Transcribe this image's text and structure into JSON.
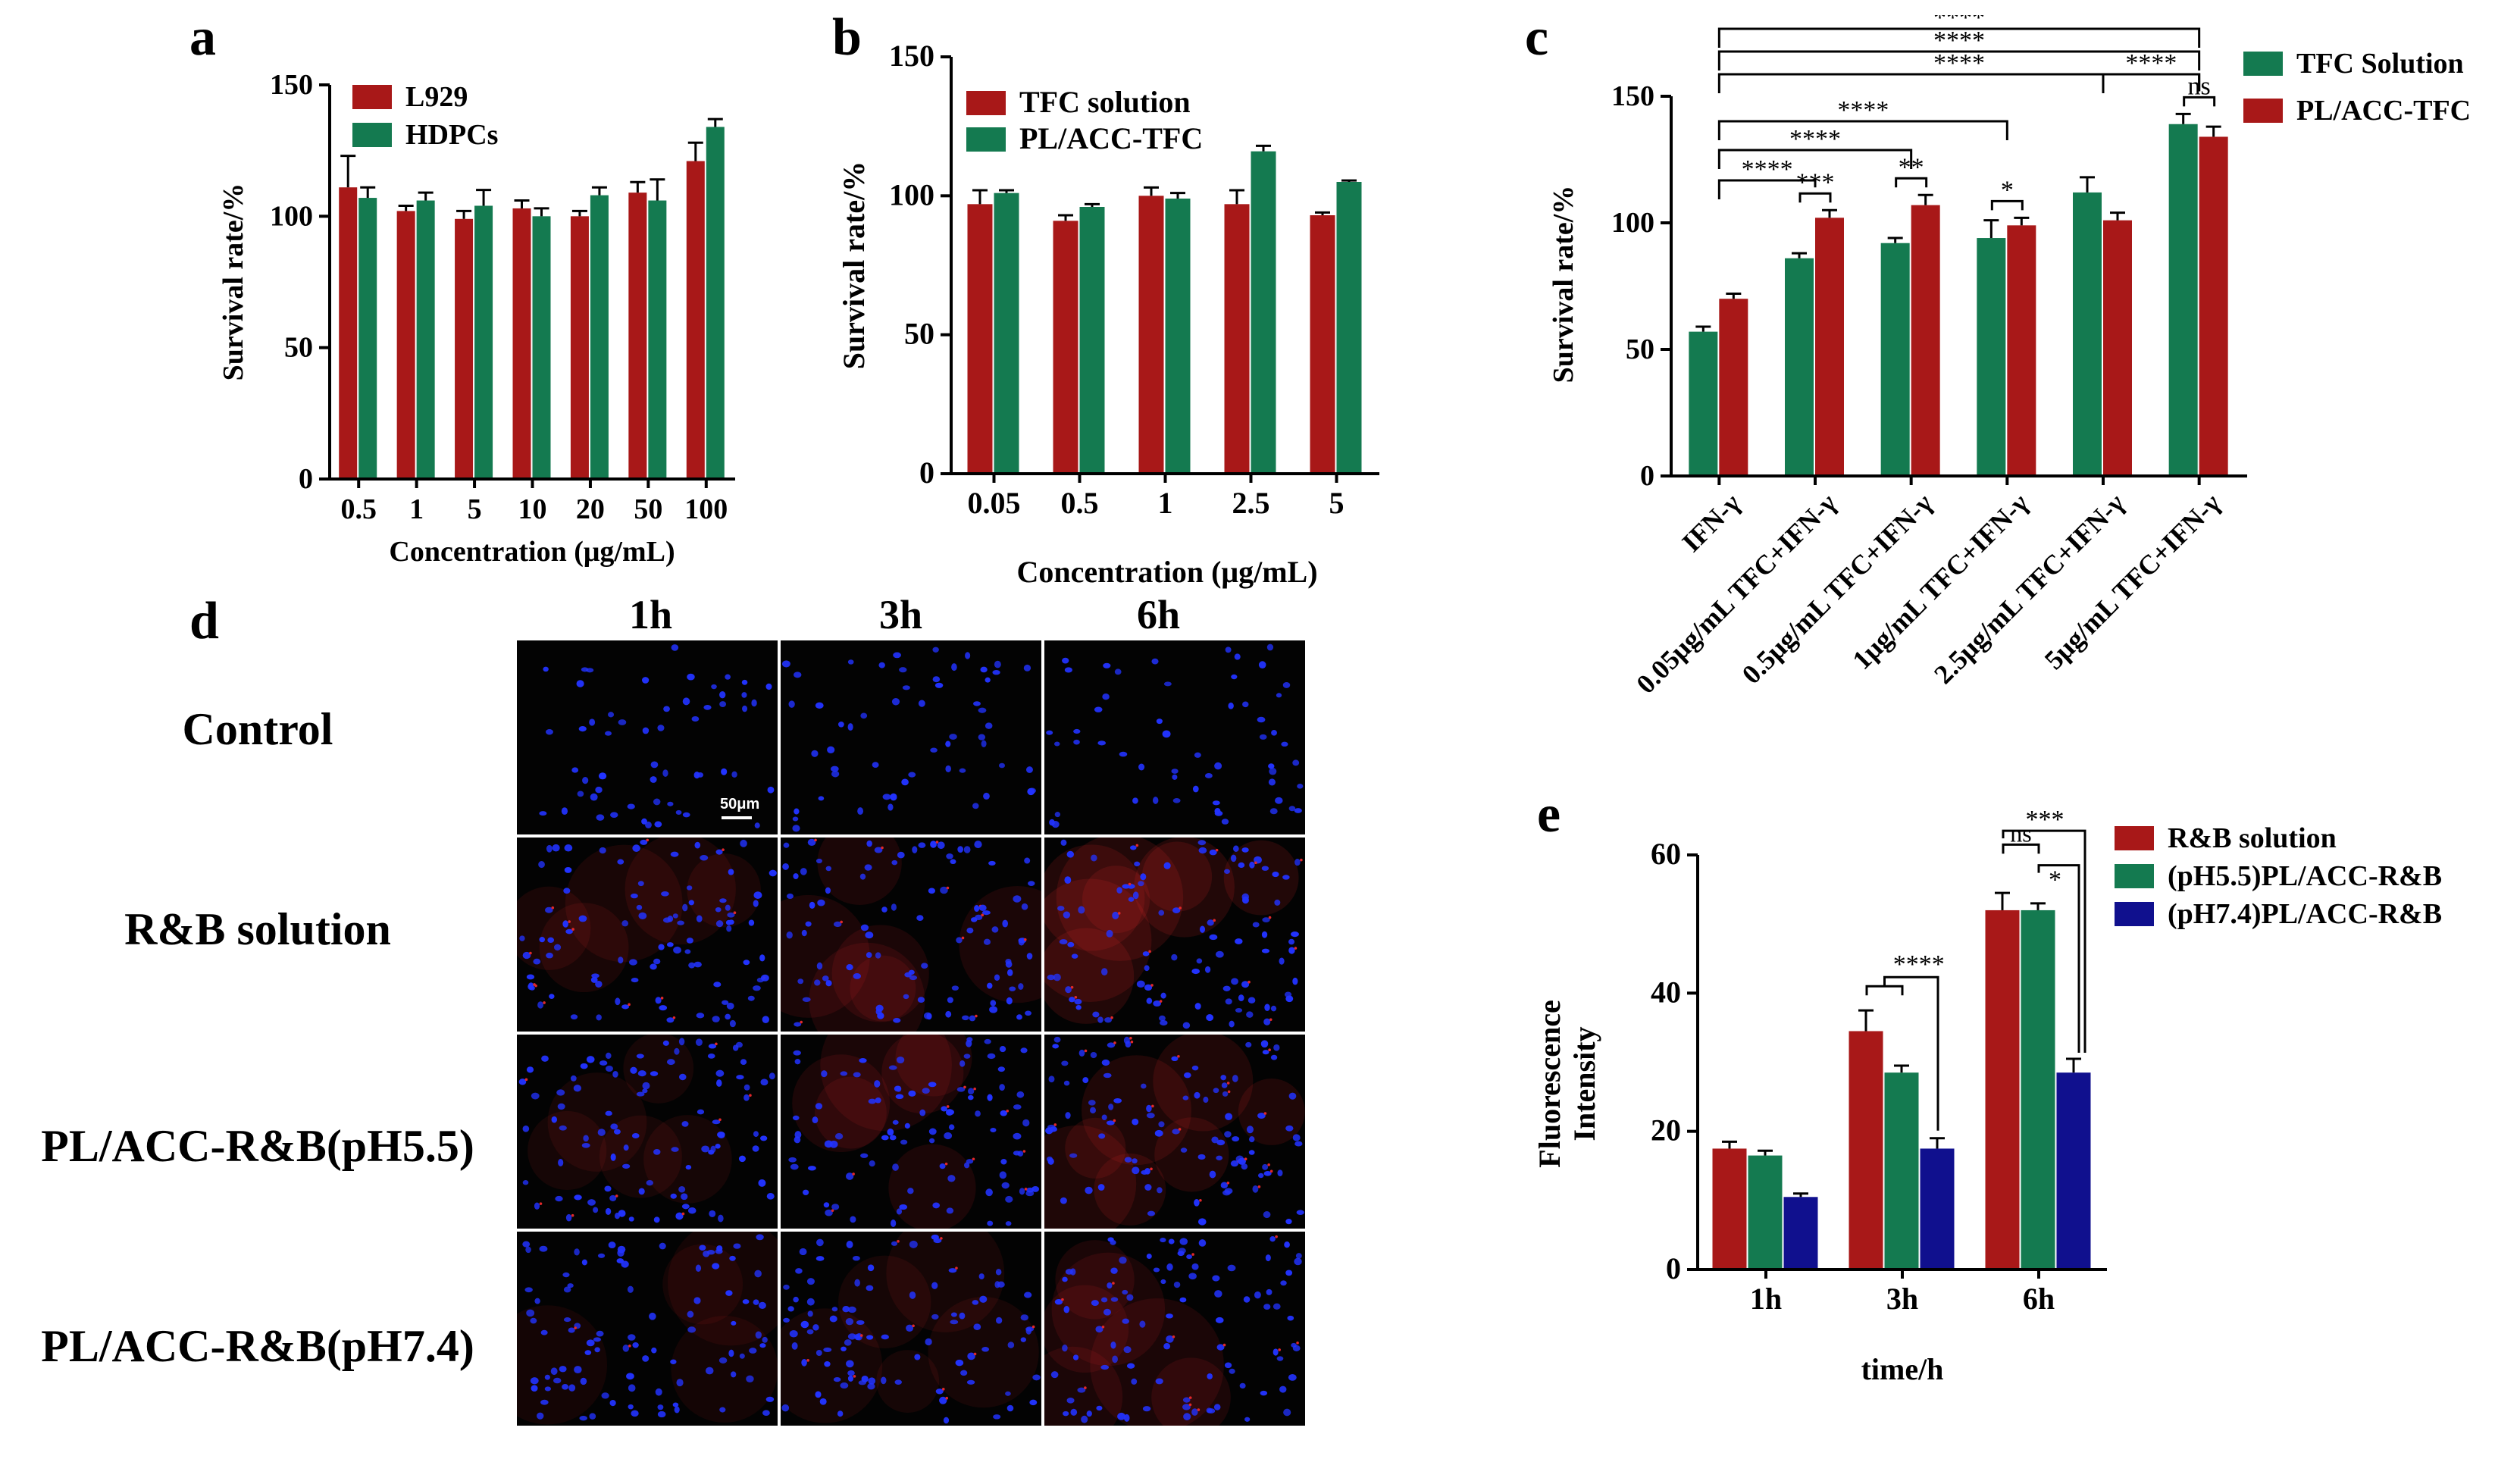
{
  "colors": {
    "red": "#A81818",
    "green": "#147A50",
    "blue": "#10108E",
    "micro_background": "#030303",
    "nucleus": "#2233FF",
    "dye": "#E0282A"
  },
  "panels": {
    "a": {
      "letter": "a"
    },
    "b": {
      "letter": "b"
    },
    "c": {
      "letter": "c"
    },
    "d": {
      "letter": "d"
    },
    "e": {
      "letter": "e"
    }
  },
  "chart_data": [
    {
      "id": "a",
      "type": "bar",
      "title": "",
      "xlabel": "Concentration (μg/mL)",
      "ylabel": "Survival rate/%",
      "ylim": [
        0,
        150
      ],
      "yticks": [
        0,
        50,
        100,
        150
      ],
      "categories": [
        "0.5",
        "1",
        "5",
        "10",
        "20",
        "50",
        "100"
      ],
      "series": [
        {
          "name": "L929",
          "color": "#A81818",
          "values": [
            111,
            102,
            99,
            103,
            100,
            109,
            121
          ],
          "errors": [
            12,
            2,
            3,
            3,
            2,
            4,
            7
          ]
        },
        {
          "name": "HDPCs",
          "color": "#147A50",
          "values": [
            107,
            106,
            104,
            100,
            108,
            106,
            134
          ],
          "errors": [
            4,
            3,
            6,
            3,
            3,
            8,
            3
          ]
        }
      ],
      "legend": "top-left",
      "annotations": []
    },
    {
      "id": "b",
      "type": "bar",
      "title": "",
      "xlabel": "Concentration (μg/mL)",
      "ylabel": "Survival rate/%",
      "ylim": [
        0,
        150
      ],
      "yticks": [
        0,
        50,
        100,
        150
      ],
      "categories": [
        "0.05",
        "0.5",
        "1",
        "2.5",
        "5"
      ],
      "series": [
        {
          "name": "TFC solution",
          "color": "#A81818",
          "values": [
            97,
            91,
            100,
            97,
            93
          ],
          "errors": [
            5,
            2,
            3,
            5,
            1
          ]
        },
        {
          "name": "PL/ACC-TFC",
          "color": "#147A50",
          "values": [
            101,
            96,
            99,
            116,
            105
          ],
          "errors": [
            1,
            1,
            2,
            2,
            0.5
          ]
        }
      ],
      "legend": "top-left",
      "annotations": []
    },
    {
      "id": "c",
      "type": "bar",
      "title": "",
      "xlabel": "",
      "ylabel": "Survival rate/%",
      "ylim": [
        0,
        150
      ],
      "yticks": [
        0,
        50,
        100,
        150
      ],
      "categories": [
        "IFN-γ",
        "0.05μg/mL TFC+IFN-γ",
        "0.5μg/mL TFC+IFN-γ",
        "1μg/mL TFC+IFN-γ",
        "2.5μg/mL TFC+IFN-γ",
        "5μg/mL TFC+IFN-γ"
      ],
      "series": [
        {
          "name": "TFC Solution",
          "color": "#147A50",
          "values": [
            57,
            86,
            92,
            94,
            112,
            139
          ],
          "errors": [
            2,
            2,
            2,
            7,
            6,
            4
          ]
        },
        {
          "name": "PL/ACC-TFC",
          "color": "#A81818",
          "values": [
            70,
            102,
            107,
            99,
            101,
            134
          ],
          "errors": [
            2,
            3,
            4,
            3,
            3,
            4
          ]
        }
      ],
      "legend": "top-right",
      "annotations": [
        {
          "text": "****",
          "from": 0,
          "to": 5,
          "level": 7
        },
        {
          "text": "****",
          "from": 0,
          "to": 5,
          "level": 6
        },
        {
          "text": "****",
          "from": 0,
          "to": 5,
          "level": 5
        },
        {
          "text": "****",
          "from": 0,
          "to": 3,
          "level": 4
        },
        {
          "text": "****",
          "from": 0,
          "to": 2,
          "level": 3
        },
        {
          "text": "****",
          "from": 0,
          "to": 1,
          "level": 2
        },
        {
          "text": "****",
          "from": 4,
          "to": 5,
          "level": 5
        },
        {
          "text": "***",
          "within": 1
        },
        {
          "text": "**",
          "within": 2
        },
        {
          "text": "*",
          "within": 3
        },
        {
          "text": "ns",
          "within": 5
        }
      ]
    },
    {
      "id": "e",
      "type": "bar",
      "title": "",
      "xlabel": "time/h",
      "ylabel": "Fluorescence Intensity",
      "ylim": [
        0,
        60
      ],
      "yticks": [
        0,
        20,
        40,
        60
      ],
      "categories": [
        "1h",
        "3h",
        "6h"
      ],
      "series": [
        {
          "name": "R&B solution",
          "color": "#A81818",
          "values": [
            17.5,
            34.5,
            52
          ],
          "errors": [
            1,
            3,
            2.5
          ]
        },
        {
          "name": "(pH5.5)PL/ACC-R&B",
          "color": "#147A50",
          "values": [
            16.5,
            28.5,
            52
          ],
          "errors": [
            0.7,
            1,
            1
          ]
        },
        {
          "name": "(pH7.4)PL/ACC-R&B",
          "color": "#10108E",
          "values": [
            10.5,
            17.5,
            28.5
          ],
          "errors": [
            0.5,
            1.5,
            2
          ]
        }
      ],
      "legend": "top-right",
      "annotations": [
        {
          "text": "****",
          "group": 1
        },
        {
          "text": "ns",
          "group": 2
        },
        {
          "text": "*",
          "group": 2
        },
        {
          "text": "***",
          "group": 2
        }
      ]
    }
  ],
  "micrographs": {
    "columns": [
      "1h",
      "3h",
      "6h"
    ],
    "rows": [
      "Control",
      "R&B solution",
      "PL/ACC-R&B(pH5.5)",
      "PL/ACC-R&B(pH7.4)"
    ],
    "scale_bar": "50μm",
    "red_signal": [
      [
        0,
        0,
        0
      ],
      [
        0.35,
        0.5,
        0.75
      ],
      [
        0.3,
        0.45,
        0.7
      ],
      [
        0.2,
        0.3,
        0.45
      ]
    ]
  }
}
